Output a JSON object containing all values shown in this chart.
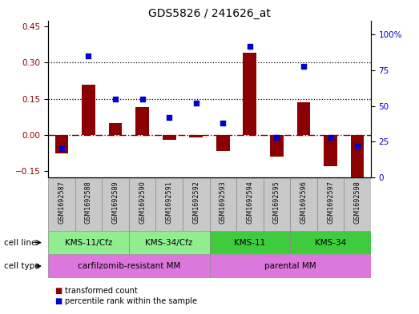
{
  "title": "GDS5826 / 241626_at",
  "samples": [
    "GSM1692587",
    "GSM1692588",
    "GSM1692589",
    "GSM1692590",
    "GSM1692591",
    "GSM1692592",
    "GSM1692593",
    "GSM1692594",
    "GSM1692595",
    "GSM1692596",
    "GSM1692597",
    "GSM1692598"
  ],
  "transformed_count": [
    -0.075,
    0.21,
    0.05,
    0.115,
    -0.02,
    -0.01,
    -0.065,
    0.34,
    -0.09,
    0.135,
    -0.13,
    -0.175
  ],
  "percentile_rank": [
    20,
    85,
    55,
    55,
    42,
    52,
    38,
    92,
    28,
    78,
    28,
    22
  ],
  "bar_color": "#8B0000",
  "dot_color": "#0000CD",
  "zero_line_color": "#8B0000",
  "ylim_left": [
    -0.175,
    0.475
  ],
  "ylim_right": [
    0,
    110
  ],
  "yticks_left": [
    -0.15,
    0.0,
    0.15,
    0.3,
    0.45
  ],
  "yticks_right": [
    0,
    25,
    50,
    75,
    100
  ],
  "hlines": [
    0.15,
    0.3
  ],
  "cell_line_groups": [
    {
      "label": "KMS-11/Cfz",
      "start": 0,
      "end": 3,
      "color": "#90EE90"
    },
    {
      "label": "KMS-34/Cfz",
      "start": 3,
      "end": 6,
      "color": "#90EE90"
    },
    {
      "label": "KMS-11",
      "start": 6,
      "end": 9,
      "color": "#3ECC3E"
    },
    {
      "label": "KMS-34",
      "start": 9,
      "end": 12,
      "color": "#3ECC3E"
    }
  ],
  "cell_type_groups": [
    {
      "label": "carfilzomib-resistant MM",
      "start": 0,
      "end": 6,
      "color": "#DD77DD"
    },
    {
      "label": "parental MM",
      "start": 6,
      "end": 12,
      "color": "#DD77DD"
    }
  ],
  "legend_items": [
    {
      "label": "transformed count",
      "color": "#8B0000"
    },
    {
      "label": "percentile rank within the sample",
      "color": "#0000CD"
    }
  ],
  "bg_color": "#C8C8C8",
  "plot_bg": "white",
  "bar_width": 0.5
}
